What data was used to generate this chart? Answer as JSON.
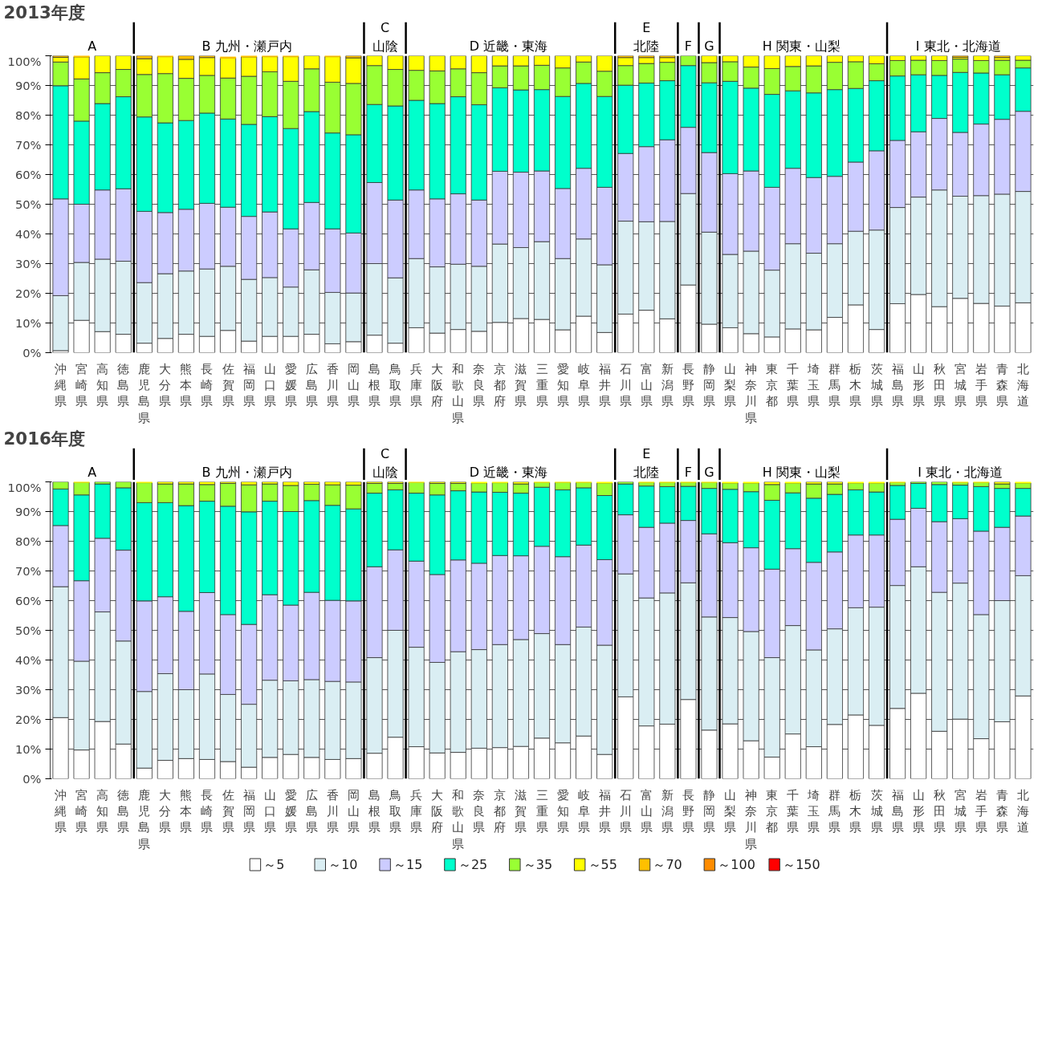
{
  "chart_data": [
    {
      "type": "bar",
      "title": "2013年度",
      "stacked": true,
      "grid": "y",
      "categories": [
        "沖縄県",
        "宮崎県",
        "高知県",
        "徳島県",
        "鹿児島県",
        "大分県",
        "熊本県",
        "長崎県",
        "佐賀県",
        "福岡県",
        "山口県",
        "愛媛県",
        "広島県",
        "香川県",
        "岡山県",
        "島根県",
        "鳥取県",
        "兵庫県",
        "大阪府",
        "和歌山県",
        "奈良県",
        "京都府",
        "滋賀県",
        "三重県",
        "愛知県",
        "岐阜県",
        "福井県",
        "石川県",
        "富山県",
        "新潟県",
        "長野県",
        "静岡県",
        "山梨県",
        "神奈川県",
        "東京都",
        "千葉県",
        "埼玉県",
        "群馬県",
        "栃木県",
        "茨城県",
        "福島県",
        "山形県",
        "秋田県",
        "宮城県",
        "岩手県",
        "青森県",
        "北海道"
      ],
      "ylim": [
        0,
        100
      ],
      "yticks": [
        {
          "value": 0,
          "label": "0%"
        },
        {
          "value": 10,
          "label": "10%"
        },
        {
          "value": 20,
          "label": "20%"
        },
        {
          "value": 30,
          "label": "30%"
        },
        {
          "value": 40,
          "label": "40%"
        },
        {
          "value": 50,
          "label": "50%"
        },
        {
          "value": 60,
          "label": "60%"
        },
        {
          "value": 70,
          "label": "70%"
        },
        {
          "value": 80,
          "label": "80%"
        },
        {
          "value": 90,
          "label": "90%"
        },
        {
          "value": 100,
          "label": "100%"
        }
      ],
      "annotations": [
        "A",
        "B  九州・瀬戸内",
        "C\n山陰",
        "D  近畿・東海",
        "E\n北陸",
        "F",
        "G",
        "H  関東・山梨",
        "I  東北・北海道"
      ],
      "series": [
        {
          "color": "#ffffff",
          "values": [
            0.7,
            10.9,
            7.1,
            6.2,
            3.2,
            4.8,
            6.2,
            5.5,
            7.5,
            3.9,
            5.5,
            5.5,
            6.2,
            3.0,
            3.7,
            5.9,
            3.2,
            8.4,
            6.6,
            7.8,
            7.2,
            10.2,
            11.5,
            11.2,
            7.7,
            12.3,
            6.8,
            13.0,
            14.3,
            11.4,
            22.8,
            9.6,
            8.4,
            6.4,
            5.3,
            8.0,
            7.7,
            11.9,
            16.1,
            7.8,
            16.5,
            19.6,
            15.5,
            18.3,
            16.6,
            15.7,
            16.8
          ]
        },
        {
          "color": "#daeef3",
          "values": [
            18.5,
            19.5,
            24.4,
            24.6,
            20.4,
            21.8,
            21.3,
            22.7,
            21.6,
            20.8,
            19.8,
            16.6,
            21.7,
            17.3,
            16.4,
            24.1,
            22.0,
            23.3,
            22.3,
            22.0,
            21.9,
            26.4,
            23.9,
            26.2,
            24.0,
            26.0,
            22.8,
            31.3,
            29.8,
            32.8,
            30.8,
            31.0,
            24.7,
            27.8,
            22.5,
            28.7,
            25.8,
            24.8,
            24.8,
            33.5,
            32.4,
            32.8,
            39.3,
            34.4,
            36.3,
            37.7,
            37.5
          ]
        },
        {
          "color": "#ccccff",
          "values": [
            32.6,
            19.6,
            23.3,
            24.4,
            24.0,
            20.6,
            20.8,
            22.1,
            19.9,
            21.2,
            22.1,
            19.6,
            22.7,
            21.4,
            20.2,
            27.3,
            26.2,
            23.1,
            22.9,
            23.7,
            22.3,
            24.5,
            25.4,
            23.8,
            23.6,
            23.8,
            26.1,
            22.8,
            25.3,
            27.5,
            22.3,
            26.8,
            27.2,
            27.0,
            27.9,
            25.4,
            25.5,
            22.7,
            23.3,
            26.7,
            22.6,
            22.0,
            24.1,
            21.5,
            24.1,
            25.2,
            27.0
          ]
        },
        {
          "color": "#00ffcc",
          "values": [
            38.1,
            28.0,
            29.1,
            31.0,
            31.8,
            30.2,
            29.9,
            30.4,
            29.7,
            31.0,
            32.1,
            33.8,
            30.6,
            32.3,
            33.1,
            26.3,
            31.7,
            30.2,
            32.1,
            32.7,
            32.1,
            28.1,
            27.7,
            27.4,
            31.0,
            28.6,
            30.6,
            23.0,
            21.4,
            19.9,
            20.8,
            23.5,
            31.1,
            27.9,
            31.3,
            26.1,
            28.5,
            29.2,
            24.8,
            23.6,
            21.7,
            19.2,
            14.5,
            20.2,
            17.2,
            15.0,
            14.6
          ]
        },
        {
          "color": "#99ff33",
          "values": [
            8.0,
            14.2,
            10.4,
            9.2,
            14.3,
            16.6,
            14.2,
            12.7,
            13.8,
            16.2,
            15.1,
            15.9,
            14.4,
            17.1,
            17.3,
            13.1,
            12.3,
            10.1,
            11.0,
            9.4,
            10.8,
            7.4,
            8.1,
            8.2,
            9.6,
            7.2,
            8.5,
            6.6,
            6.6,
            6.2,
            3.3,
            6.8,
            6.6,
            7.1,
            8.7,
            8.2,
            9.1,
            9.2,
            9.0,
            5.7,
            5.2,
            4.9,
            5.0,
            4.5,
            4.2,
            4.9,
            2.6
          ]
        },
        {
          "color": "#ffff00",
          "values": [
            1.6,
            7.4,
            5.7,
            4.6,
            5.3,
            5.7,
            6.4,
            6.0,
            6.7,
            6.5,
            5.1,
            8.3,
            4.4,
            8.6,
            8.6,
            3.3,
            4.6,
            4.9,
            5.1,
            4.4,
            5.7,
            3.4,
            3.4,
            3.2,
            4.1,
            2.1,
            5.2,
            2.7,
            2.0,
            1.6,
            0,
            2.3,
            2.0,
            3.8,
            4.3,
            3.6,
            3.4,
            2.2,
            2.0,
            2.7,
            1.6,
            1.5,
            1.6,
            0.6,
            1.6,
            0.9,
            1.5
          ]
        },
        {
          "color": "#ffc000",
          "values": [
            0.5,
            0.4,
            0,
            0,
            1.0,
            0.3,
            1.2,
            0.6,
            0.4,
            0.4,
            0.3,
            0.3,
            0,
            0.3,
            0.7,
            0,
            0,
            0,
            0,
            0,
            0,
            0,
            0,
            0,
            0,
            0,
            0,
            0.6,
            0.6,
            0.6,
            0,
            0,
            0,
            0,
            0,
            0,
            0,
            0,
            0,
            0,
            0,
            0,
            0,
            0.5,
            0,
            0.6,
            0
          ]
        },
        {
          "color": "#ff8c00",
          "values": [
            0,
            0,
            0,
            0,
            0,
            0,
            0,
            0,
            0,
            0,
            0,
            0,
            0,
            0,
            0,
            0,
            0,
            0,
            0,
            0,
            0,
            0,
            0,
            0,
            0,
            0,
            0,
            0,
            0,
            0,
            0,
            0,
            0,
            0,
            0,
            0,
            0,
            0,
            0,
            0,
            0,
            0,
            0,
            0,
            0,
            0,
            0
          ]
        },
        {
          "color": "#ff0000",
          "values": [
            0,
            0,
            0,
            0,
            0,
            0,
            0,
            0,
            0,
            0,
            0,
            0,
            0,
            0,
            0,
            0,
            0,
            0,
            0,
            0,
            0,
            0,
            0,
            0,
            0,
            0,
            0,
            0,
            0,
            0,
            0,
            0,
            0,
            0,
            0,
            0,
            0,
            0,
            0,
            0,
            0,
            0,
            0,
            0,
            0,
            0,
            0
          ]
        }
      ]
    },
    {
      "type": "bar",
      "title": "2016年度",
      "stacked": true,
      "grid": "y",
      "legend": "bottom",
      "categories": [
        "沖縄県",
        "宮崎県",
        "高知県",
        "徳島県",
        "鹿児島県",
        "大分県",
        "熊本県",
        "長崎県",
        "佐賀県",
        "福岡県",
        "山口県",
        "愛媛県",
        "広島県",
        "香川県",
        "岡山県",
        "島根県",
        "鳥取県",
        "兵庫県",
        "大阪府",
        "和歌山県",
        "奈良県",
        "京都府",
        "滋賀県",
        "三重県",
        "愛知県",
        "岐阜県",
        "福井県",
        "石川県",
        "富山県",
        "新潟県",
        "長野県",
        "静岡県",
        "山梨県",
        "神奈川県",
        "東京都",
        "千葉県",
        "埼玉県",
        "群馬県",
        "栃木県",
        "茨城県",
        "福島県",
        "山形県",
        "秋田県",
        "宮城県",
        "岩手県",
        "青森県",
        "北海道"
      ],
      "ylim": [
        0,
        100
      ],
      "yticks": [
        {
          "value": 0,
          "label": "0%"
        },
        {
          "value": 10,
          "label": "10%"
        },
        {
          "value": 20,
          "label": "20%"
        },
        {
          "value": 30,
          "label": "30%"
        },
        {
          "value": 40,
          "label": "40%"
        },
        {
          "value": 50,
          "label": "50%"
        },
        {
          "value": 60,
          "label": "60%"
        },
        {
          "value": 70,
          "label": "70%"
        },
        {
          "value": 80,
          "label": "80%"
        },
        {
          "value": 90,
          "label": "90%"
        },
        {
          "value": 100,
          "label": "100%"
        }
      ],
      "annotations": [
        "A",
        "B  九州・瀬戸内",
        "C\n山陰",
        "D  近畿・東海",
        "E\n北陸",
        "F",
        "G",
        "H  関東・山梨",
        "I 東北・北海道"
      ],
      "series": [
        {
          "name": "～5",
          "color": "#ffffff",
          "values": [
            20.6,
            9.7,
            19.3,
            11.7,
            3.6,
            6.2,
            6.8,
            6.5,
            5.8,
            3.9,
            7.2,
            8.2,
            7.2,
            6.5,
            6.8,
            8.6,
            14.0,
            10.8,
            8.7,
            8.9,
            10.3,
            10.5,
            10.9,
            13.7,
            12.1,
            14.4,
            8.2,
            27.6,
            17.8,
            18.4,
            26.7,
            16.4,
            18.5,
            12.8,
            7.3,
            15.1,
            10.8,
            18.3,
            21.5,
            18.0,
            23.7,
            28.8,
            16.0,
            20.1,
            13.5,
            19.2,
            27.9
          ]
        },
        {
          "name": "～10",
          "color": "#daeef3",
          "values": [
            44.1,
            29.9,
            36.9,
            34.7,
            25.8,
            29.2,
            23.2,
            28.8,
            22.6,
            21.2,
            26.0,
            24.8,
            26.2,
            26.3,
            25.8,
            32.2,
            36.0,
            33.5,
            30.5,
            33.9,
            33.2,
            34.7,
            36.0,
            35.2,
            33.1,
            36.7,
            36.8,
            41.4,
            43.1,
            44.2,
            39.3,
            38.1,
            35.8,
            36.8,
            33.5,
            36.5,
            32.6,
            32.2,
            36.1,
            39.8,
            41.4,
            42.6,
            46.8,
            45.8,
            41.8,
            40.8,
            40.5
          ]
        },
        {
          "name": "～15",
          "color": "#ccccff",
          "values": [
            20.6,
            27.1,
            24.8,
            30.6,
            30.5,
            25.9,
            26.4,
            27.4,
            26.9,
            26.9,
            28.8,
            25.5,
            29.4,
            27.3,
            27.3,
            30.6,
            27.1,
            29.0,
            29.6,
            30.9,
            29.1,
            30.0,
            28.2,
            29.4,
            29.6,
            27.6,
            28.8,
            19.9,
            23.8,
            23.5,
            21.0,
            28.0,
            25.2,
            28.2,
            29.8,
            25.9,
            29.5,
            25.9,
            24.5,
            24.3,
            22.3,
            19.7,
            23.8,
            21.7,
            28.1,
            24.7,
            20.1
          ]
        },
        {
          "name": "～25",
          "color": "#00ffcc",
          "values": [
            12.3,
            28.9,
            18.3,
            21.0,
            33.1,
            31.7,
            35.6,
            30.8,
            36.5,
            37.9,
            31.5,
            31.5,
            30.9,
            32.0,
            31.0,
            24.8,
            20.2,
            22.9,
            26.8,
            23.3,
            24.0,
            21.3,
            21.1,
            19.9,
            22.5,
            19.3,
            21.6,
            10.4,
            13.9,
            12.3,
            11.5,
            15.3,
            18.0,
            18.9,
            23.2,
            18.8,
            21.6,
            19.4,
            15.2,
            14.5,
            11.4,
            8.4,
            12.5,
            11.3,
            15.0,
            13.1,
            9.3
          ]
        },
        {
          "name": "～35",
          "color": "#99ff33",
          "values": [
            2.4,
            4.2,
            0.7,
            2.0,
            6.7,
            6.3,
            7.3,
            5.6,
            7.7,
            9.1,
            5.8,
            8.8,
            5.5,
            6.9,
            8.0,
            3.3,
            2.2,
            3.6,
            3.9,
            2.5,
            3.0,
            3.2,
            3.1,
            1.6,
            2.5,
            1.8,
            4.2,
            0.7,
            1.2,
            1.4,
            1.3,
            2.0,
            2.1,
            2.9,
            5.3,
            3.3,
            4.8,
            3.5,
            2.3,
            3.0,
            1.0,
            0.5,
            0.9,
            0.9,
            1.4,
            1.5,
            1.8
          ]
        },
        {
          "name": "～55",
          "color": "#ffff00",
          "values": [
            0,
            0.2,
            0,
            0,
            0.3,
            0.7,
            0.7,
            0.9,
            0.5,
            1.0,
            0.7,
            1.2,
            0.8,
            1.0,
            1.1,
            0.5,
            0.5,
            0.2,
            0.5,
            0.5,
            0.4,
            0.3,
            0.7,
            0.2,
            0.2,
            0.2,
            0.4,
            0,
            0.2,
            0.2,
            0.2,
            0.2,
            0.4,
            0.4,
            0.9,
            0.4,
            0.7,
            0.7,
            0.4,
            0.4,
            0.2,
            0,
            0,
            0.2,
            0.2,
            0.7,
            0.4
          ]
        },
        {
          "name": "～70",
          "color": "#ffc000",
          "values": [
            0,
            0,
            0,
            0,
            0,
            0,
            0,
            0,
            0,
            0,
            0,
            0,
            0,
            0,
            0,
            0,
            0,
            0,
            0,
            0,
            0,
            0,
            0,
            0,
            0,
            0,
            0,
            0,
            0,
            0,
            0,
            0,
            0,
            0,
            0,
            0,
            0,
            0,
            0,
            0,
            0,
            0,
            0,
            0,
            0,
            0,
            0
          ]
        },
        {
          "name": "～100",
          "color": "#ff8c00",
          "values": [
            0,
            0,
            0,
            0,
            0,
            0,
            0,
            0,
            0,
            0,
            0,
            0,
            0,
            0,
            0,
            0,
            0,
            0,
            0,
            0,
            0,
            0,
            0,
            0,
            0,
            0,
            0,
            0,
            0,
            0,
            0,
            0,
            0,
            0,
            0,
            0,
            0,
            0,
            0,
            0,
            0,
            0,
            0,
            0,
            0,
            0,
            0
          ]
        },
        {
          "name": "～150",
          "color": "#ff0000",
          "values": [
            0,
            0,
            0,
            0,
            0,
            0,
            0,
            0,
            0,
            0,
            0,
            0,
            0,
            0,
            0,
            0,
            0,
            0,
            0,
            0,
            0,
            0,
            0,
            0,
            0,
            0,
            0,
            0,
            0,
            0,
            0,
            0,
            0,
            0,
            0,
            0,
            0,
            0,
            0,
            0,
            0,
            0,
            0,
            0,
            0,
            0,
            0
          ]
        }
      ]
    }
  ]
}
